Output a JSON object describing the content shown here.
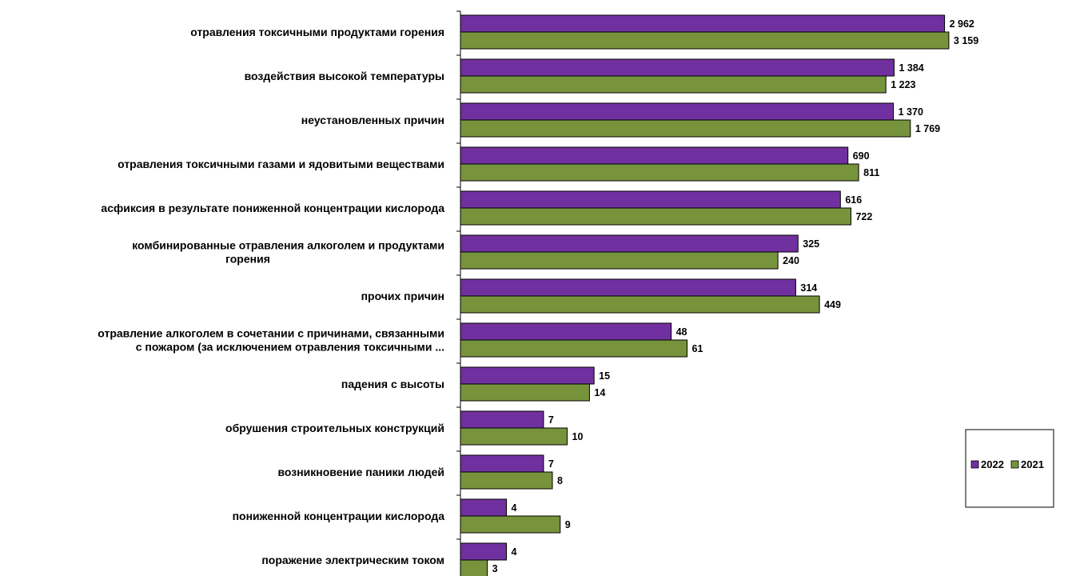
{
  "chart_data": {
    "type": "bar",
    "orientation": "horizontal",
    "categories": [
      [
        "отравления токсичными  продуктами горения"
      ],
      [
        "воздействия высокой температуры"
      ],
      [
        "неустановленных  причин"
      ],
      [
        "отравления токсичными  газами и ядовитыми веществами"
      ],
      [
        "асфиксия  в результате пониженной концентрации  кислорода"
      ],
      [
        "комбинированные  отравления алкоголем и продуктами",
        "горения"
      ],
      [
        "прочих причин"
      ],
      [
        "отравление алкоголем в сочетании  с причинами,  связанными",
        "с пожаром (за исключением отравления токсичными ..."
      ],
      [
        "падения с высоты"
      ],
      [
        "обрушения строительных  конструкций"
      ],
      [
        "возникновение  паники людей"
      ],
      [
        "пониженной концентрации  кислорода"
      ],
      [
        "поражение электрическим  током"
      ]
    ],
    "series": [
      {
        "name": "2022",
        "color": "#7030A0",
        "values": [
          2962,
          1384,
          1370,
          690,
          616,
          325,
          314,
          48,
          15,
          7,
          7,
          4,
          4
        ],
        "labels": [
          "2 962",
          "1 384",
          "1 370",
          "690",
          "616",
          "325",
          "314",
          "48",
          "15",
          "7",
          "7",
          "4",
          "4"
        ]
      },
      {
        "name": "2021",
        "color": "#77933C",
        "values": [
          3159,
          1223,
          1769,
          811,
          722,
          240,
          449,
          61,
          14,
          10,
          8,
          9,
          3
        ],
        "labels": [
          "3 159",
          "1 223",
          "1 769",
          "811",
          "722",
          "240",
          "449",
          "61",
          "14",
          "10",
          "8",
          "9",
          "3"
        ]
      }
    ],
    "scale": "log",
    "title": "",
    "xlabel": "",
    "ylabel": "",
    "grid": false,
    "legend_position": "right"
  }
}
